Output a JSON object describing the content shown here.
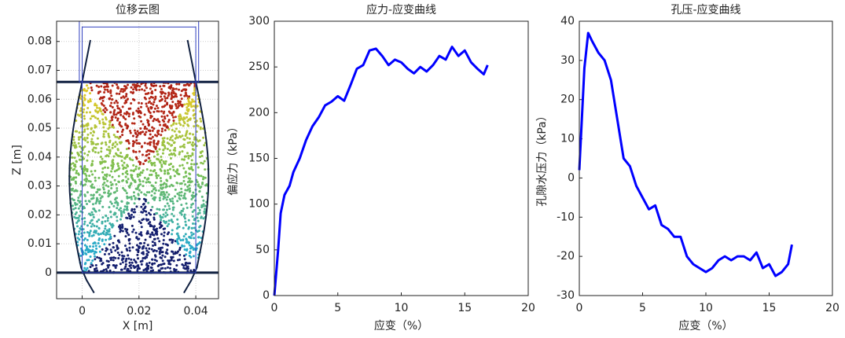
{
  "chart_data": [
    {
      "type": "particles",
      "title": "位移云图",
      "xlabel": "X [m]",
      "ylabel": "Z [m]",
      "xlim": [
        -0.009,
        0.048
      ],
      "xticks": [
        0,
        0.02,
        0.04
      ],
      "ylim": [
        -0.009,
        0.087
      ],
      "yticks": [
        0,
        0.01,
        0.02,
        0.03,
        0.04,
        0.05,
        0.06,
        0.07,
        0.08
      ],
      "grid": true
    },
    {
      "type": "line",
      "title": "应力-应变曲线",
      "xlabel": "应变（%）",
      "ylabel": "偏应力（kPa）",
      "color": "#0000ff",
      "x": [
        0,
        0.3,
        0.5,
        0.8,
        1.2,
        1.5,
        2,
        2.5,
        3,
        3.5,
        4,
        4.5,
        5,
        5.5,
        6,
        6.5,
        7,
        7.5,
        8,
        8.5,
        9,
        9.5,
        10,
        10.5,
        11,
        11.5,
        12,
        12.5,
        13,
        13.5,
        14,
        14.5,
        15,
        15.5,
        16,
        16.5,
        16.8
      ],
      "values": [
        0,
        50,
        90,
        110,
        120,
        135,
        150,
        170,
        185,
        195,
        208,
        212,
        218,
        213,
        230,
        248,
        252,
        268,
        270,
        262,
        252,
        258,
        255,
        248,
        243,
        250,
        245,
        252,
        262,
        258,
        272,
        262,
        268,
        255,
        248,
        242,
        252
      ],
      "xlim": [
        0,
        20
      ],
      "xticks": [
        0,
        5,
        10,
        15,
        20
      ],
      "ylim": [
        0,
        300
      ],
      "yticks": [
        0,
        50,
        100,
        150,
        200,
        250,
        300
      ],
      "grid": false
    },
    {
      "type": "line",
      "title": "孔压-应变曲线",
      "xlabel": "应变（%）",
      "ylabel": "孔隙水压力（kPa）",
      "color": "#0000ff",
      "x": [
        0,
        0.2,
        0.4,
        0.7,
        1,
        1.5,
        2,
        2.5,
        3,
        3.5,
        4,
        4.5,
        5,
        5.5,
        6,
        6.5,
        7,
        7.5,
        8,
        8.5,
        9,
        9.5,
        10,
        10.5,
        11,
        11.5,
        12,
        12.5,
        13,
        13.5,
        14,
        14.5,
        15,
        15.5,
        16,
        16.5,
        16.8
      ],
      "values": [
        2,
        15,
        28,
        37,
        35,
        32,
        30,
        25,
        15,
        5,
        3,
        -2,
        -5,
        -8,
        -7,
        -12,
        -13,
        -15,
        -15,
        -20,
        -22,
        -23,
        -24,
        -23,
        -21,
        -20,
        -21,
        -20,
        -20,
        -21,
        -19,
        -23,
        -22,
        -25,
        -24,
        -22,
        -17
      ],
      "xlim": [
        0,
        20
      ],
      "xticks": [
        0,
        5,
        10,
        15,
        20
      ],
      "ylim": [
        -30,
        40
      ],
      "yticks": [
        -30,
        -20,
        -10,
        0,
        10,
        20,
        30,
        40
      ],
      "grid": false
    }
  ]
}
